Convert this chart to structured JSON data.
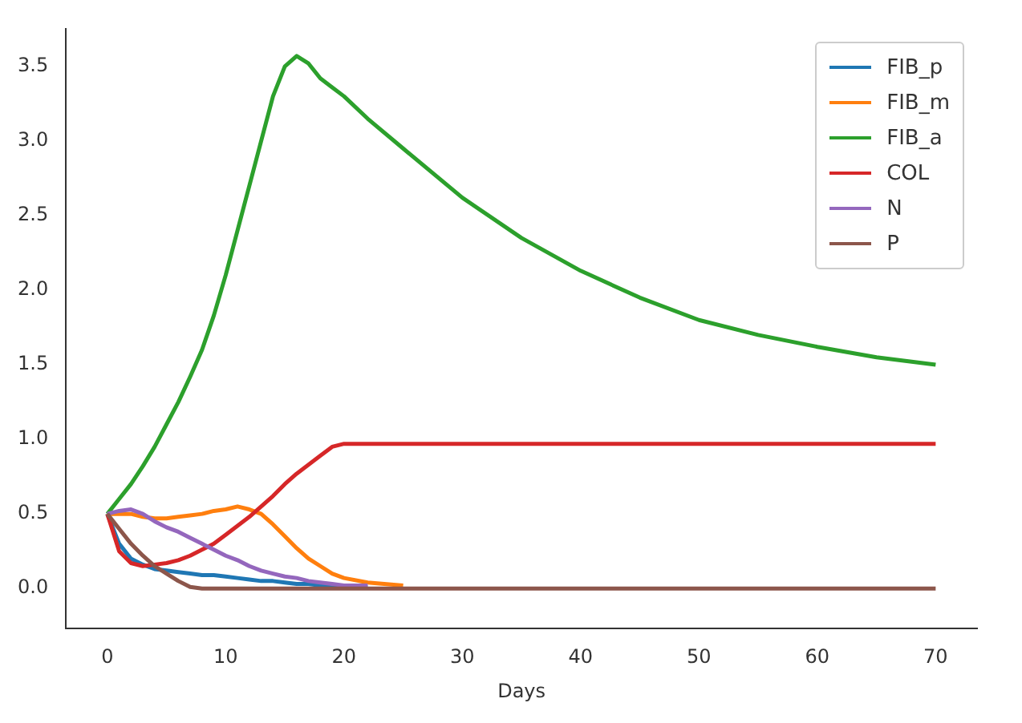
{
  "chart_data": {
    "type": "line",
    "xlabel": "Days",
    "x": [
      0,
      1,
      2,
      3,
      4,
      5,
      6,
      7,
      8,
      9,
      10,
      11,
      12,
      13,
      14,
      15,
      16,
      17,
      18,
      19,
      20,
      22,
      25,
      30,
      35,
      40,
      45,
      50,
      55,
      60,
      65,
      70
    ],
    "xlim": [
      -3.5,
      73.5
    ],
    "xticks": [
      0,
      10,
      20,
      30,
      40,
      50,
      60,
      70
    ],
    "ylim": [
      -0.27,
      3.75
    ],
    "yticks": [
      {
        "value": 0,
        "label": "0.0"
      },
      {
        "value": 0.5,
        "label": "0.5"
      },
      {
        "value": 1,
        "label": "1.0"
      },
      {
        "value": 1.5,
        "label": "1.5"
      },
      {
        "value": 2,
        "label": "2.0"
      },
      {
        "value": 2.5,
        "label": "2.5"
      },
      {
        "value": 3,
        "label": "3.0"
      },
      {
        "value": 3.5,
        "label": "3.5"
      }
    ],
    "grid": false,
    "legend": "top right",
    "marker": "none",
    "line_style": "solid",
    "series": [
      {
        "name": "FIB_p",
        "color": "#1f77b4",
        "values": [
          0.5,
          0.3,
          0.2,
          0.16,
          0.13,
          0.12,
          0.11,
          0.1,
          0.09,
          0.09,
          0.08,
          0.07,
          0.06,
          0.05,
          0.05,
          0.04,
          0.03,
          0.03,
          0.02,
          0.02,
          0.01,
          0.01,
          null,
          null,
          null,
          null,
          null,
          null,
          null,
          null,
          null,
          null
        ]
      },
      {
        "name": "FIB_m",
        "color": "#ff7f0e",
        "values": [
          0.5,
          0.5,
          0.5,
          0.48,
          0.47,
          0.47,
          0.48,
          0.49,
          0.5,
          0.52,
          0.53,
          0.55,
          0.53,
          0.5,
          0.43,
          0.35,
          0.27,
          0.2,
          0.15,
          0.1,
          0.07,
          0.04,
          0.02,
          null,
          null,
          null,
          null,
          null,
          null,
          null,
          null,
          null
        ]
      },
      {
        "name": "FIB_a",
        "color": "#2ca02c",
        "values": [
          0.5,
          0.6,
          0.7,
          0.82,
          0.95,
          1.1,
          1.25,
          1.42,
          1.6,
          1.83,
          2.1,
          2.4,
          2.7,
          3.0,
          3.3,
          3.5,
          3.57,
          3.52,
          3.42,
          3.36,
          3.3,
          3.15,
          2.95,
          2.62,
          2.35,
          2.13,
          1.95,
          1.8,
          1.7,
          1.62,
          1.55,
          1.5
        ]
      },
      {
        "name": "COL",
        "color": "#d62728",
        "values": [
          0.5,
          0.25,
          0.17,
          0.15,
          0.16,
          0.17,
          0.19,
          0.22,
          0.26,
          0.3,
          0.36,
          0.42,
          0.48,
          0.55,
          0.62,
          0.7,
          0.77,
          0.83,
          0.89,
          0.95,
          0.97,
          0.97,
          0.97,
          0.97,
          0.97,
          0.97,
          0.97,
          0.97,
          0.97,
          0.97,
          0.97,
          0.97
        ]
      },
      {
        "name": "N",
        "color": "#9467bd",
        "values": [
          0.5,
          0.52,
          0.53,
          0.5,
          0.45,
          0.41,
          0.38,
          0.34,
          0.3,
          0.26,
          0.22,
          0.19,
          0.15,
          0.12,
          0.1,
          0.08,
          0.07,
          0.05,
          0.04,
          0.03,
          0.02,
          0.02,
          null,
          null,
          null,
          null,
          null,
          null,
          null,
          null,
          null,
          null
        ]
      },
      {
        "name": "P",
        "color": "#8c564b",
        "values": [
          0.5,
          0.4,
          0.3,
          0.22,
          0.15,
          0.1,
          0.05,
          0.01,
          0,
          0,
          0,
          0,
          0,
          0,
          0,
          0,
          0,
          0,
          0,
          0,
          0,
          0,
          0,
          0,
          0,
          0,
          0,
          0,
          0,
          0,
          0,
          0
        ]
      }
    ]
  }
}
